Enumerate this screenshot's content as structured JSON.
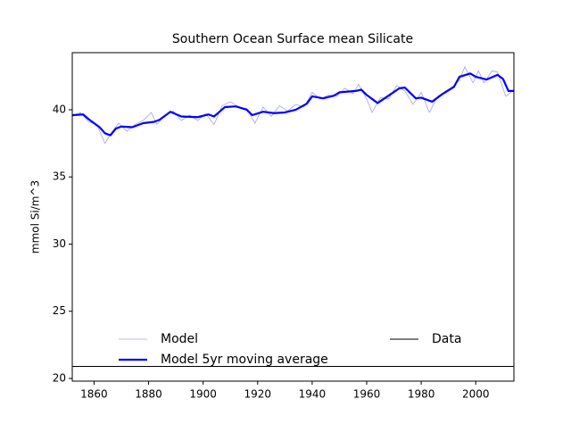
{
  "chart_data": {
    "type": "line",
    "title": "Southern Ocean Surface mean Silicate",
    "ylabel": "mmol Si/m^3",
    "xlim": [
      1852,
      2014
    ],
    "ylim": [
      19.8,
      44.25
    ],
    "xticks": [
      1860,
      1880,
      1900,
      1920,
      1940,
      1960,
      1980,
      2000
    ],
    "yticks": [
      20,
      25,
      30,
      35,
      40
    ],
    "grid": false,
    "legend": {
      "loc": "lower center",
      "ncol": 2
    },
    "series": [
      {
        "name": "Model",
        "color": "#a0a0f0",
        "width": 0.8,
        "x": [
          1852,
          1855,
          1858,
          1861,
          1864,
          1866,
          1869,
          1872,
          1875,
          1878,
          1881,
          1883,
          1886,
          1889,
          1892,
          1895,
          1898,
          1901,
          1904,
          1907,
          1910,
          1913,
          1916,
          1919,
          1922,
          1925,
          1928,
          1931,
          1934,
          1937,
          1940,
          1943,
          1946,
          1949,
          1952,
          1955,
          1957,
          1960,
          1962,
          1965,
          1968,
          1971,
          1974,
          1977,
          1980,
          1983,
          1986,
          1989,
          1992,
          1994,
          1996,
          1999,
          2001,
          2003,
          2006,
          2008,
          2011,
          2014
        ],
        "values": [
          39.5,
          39.8,
          39.1,
          38.9,
          37.5,
          38.2,
          39.0,
          38.4,
          38.9,
          39.2,
          39.8,
          38.9,
          39.6,
          39.9,
          39.2,
          39.6,
          39.2,
          39.7,
          38.9,
          40.3,
          40.6,
          40.2,
          40.1,
          39.0,
          40.2,
          39.5,
          40.3,
          39.9,
          40.4,
          40.2,
          41.3,
          40.8,
          41.1,
          41.0,
          41.6,
          41.2,
          41.9,
          40.8,
          39.8,
          40.9,
          40.8,
          41.8,
          41.4,
          40.4,
          41.3,
          39.8,
          41.0,
          41.4,
          41.8,
          42.2,
          43.2,
          42.0,
          42.9,
          42.0,
          42.9,
          42.8,
          41.0,
          41.5
        ]
      },
      {
        "name": "Model 5yr moving average",
        "color": "#0000ff",
        "width": 2.2,
        "x": [
          1852,
          1856,
          1858,
          1862,
          1864,
          1866,
          1868,
          1870,
          1874,
          1878,
          1882,
          1884,
          1888,
          1892,
          1898,
          1902,
          1904,
          1908,
          1912,
          1916,
          1918,
          1922,
          1926,
          1930,
          1934,
          1938,
          1940,
          1944,
          1948,
          1950,
          1956,
          1958,
          1960,
          1964,
          1968,
          1972,
          1974,
          1978,
          1980,
          1984,
          1988,
          1992,
          1994,
          1998,
          2000,
          2004,
          2008,
          2010,
          2012,
          2014
        ],
        "values": [
          39.6,
          39.65,
          39.3,
          38.7,
          38.25,
          38.1,
          38.6,
          38.75,
          38.7,
          39.0,
          39.1,
          39.25,
          39.85,
          39.5,
          39.45,
          39.65,
          39.5,
          40.2,
          40.25,
          40.0,
          39.6,
          39.85,
          39.75,
          39.8,
          40.0,
          40.45,
          41.0,
          40.85,
          41.05,
          41.3,
          41.4,
          41.5,
          41.1,
          40.5,
          41.05,
          41.6,
          41.65,
          40.85,
          40.9,
          40.6,
          41.2,
          41.7,
          42.45,
          42.7,
          42.45,
          42.25,
          42.6,
          42.3,
          41.4,
          41.4
        ]
      },
      {
        "name": "Data",
        "color": "#000000",
        "width": 1,
        "x": [
          1852,
          2014
        ],
        "values": [
          20.9,
          20.9
        ]
      }
    ]
  }
}
